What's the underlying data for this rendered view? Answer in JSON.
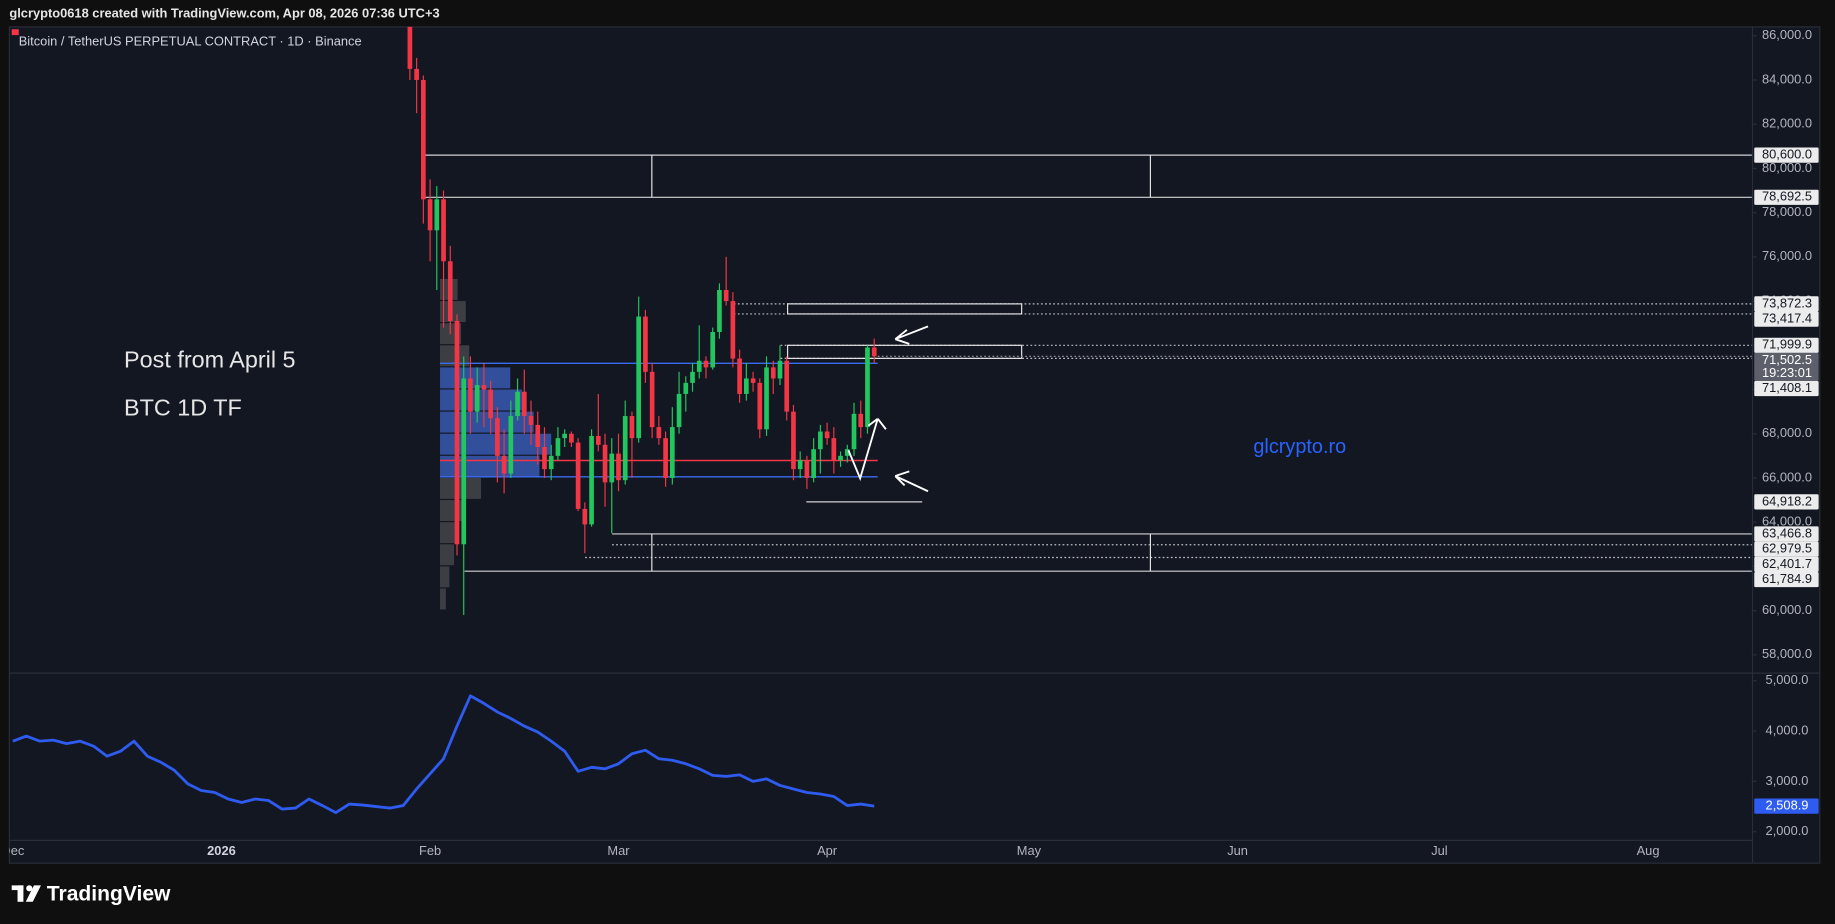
{
  "header": {
    "text": "glcrypto0618 created with TradingView.com, Apr 08, 2026 07:36 UTC+3"
  },
  "footer": {
    "brand": "TradingView"
  },
  "chart_data": [
    {
      "type": "candlestick",
      "title": "Bitcoin / TetherUS PERPETUAL CONTRACT · 1D · Binance",
      "annotations": [
        "Post from April 5",
        "BTC 1D TF",
        "glcrypto.ro"
      ],
      "open": [
        88000,
        84500,
        84000,
        78600,
        77200,
        78600,
        75800,
        73100,
        63000,
        70500,
        69000,
        70200,
        70000,
        68700,
        67000,
        66200,
        68800,
        69900,
        68800,
        68400,
        67400,
        66400,
        67000,
        67800,
        68000,
        67600,
        64600,
        63900,
        67900,
        67500,
        65800,
        67100,
        65900,
        68800,
        67800,
        73300,
        70800,
        68300,
        67800,
        66000,
        68300,
        69800,
        70300,
        70800,
        71300,
        71000,
        72600,
        74500,
        74000,
        71400,
        69800,
        70500,
        70300,
        68200,
        71000,
        70500,
        71300,
        69000,
        66400,
        66800,
        66000,
        67300,
        68100,
        67800,
        66800,
        67000,
        67300,
        68900,
        68300,
        71900
      ],
      "high": [
        88500,
        85000,
        84200,
        79500,
        79200,
        79000,
        76500,
        73400,
        71500,
        71500,
        71000,
        71200,
        70400,
        69200,
        68200,
        69500,
        70500,
        70900,
        69500,
        69000,
        68300,
        67500,
        68300,
        68200,
        68100,
        67800,
        64900,
        68200,
        69800,
        68000,
        67800,
        68000,
        69500,
        69000,
        74200,
        73600,
        71200,
        68800,
        68100,
        69200,
        70800,
        70600,
        71200,
        72900,
        71500,
        72800,
        74800,
        76000,
        74400,
        71800,
        71200,
        70800,
        70500,
        71500,
        71300,
        72000,
        71500,
        69300,
        67200,
        67000,
        67800,
        68400,
        68500,
        68300,
        67200,
        67500,
        69400,
        69500,
        72000,
        72300
      ],
      "low": [
        84000,
        82500,
        77500,
        75800,
        74500,
        72800,
        72500,
        62500,
        59800,
        68000,
        68500,
        68300,
        68000,
        65800,
        65300,
        66000,
        68600,
        68000,
        67500,
        66600,
        66000,
        65900,
        66800,
        67400,
        67400,
        64500,
        62600,
        63800,
        67200,
        64700,
        63500,
        65400,
        65700,
        66000,
        67600,
        70300,
        67800,
        67500,
        65600,
        65700,
        68000,
        69000,
        69900,
        70500,
        70500,
        70900,
        72300,
        73800,
        71000,
        69400,
        69500,
        69900,
        67800,
        67900,
        69800,
        70200,
        68600,
        65900,
        66000,
        65500,
        65800,
        66200,
        67500,
        66200,
        66500,
        66700,
        67000,
        67800,
        68000,
        71200
      ],
      "close": [
        84500,
        84000,
        78600,
        77200,
        78600,
        75800,
        73100,
        63000,
        70500,
        69000,
        70200,
        70000,
        68700,
        67000,
        66200,
        68800,
        69900,
        68800,
        68400,
        67400,
        66400,
        67000,
        67800,
        68000,
        67600,
        64600,
        63900,
        67900,
        67500,
        65800,
        67100,
        65900,
        68800,
        67800,
        73300,
        70800,
        68300,
        67800,
        66000,
        68300,
        69800,
        70300,
        70800,
        71300,
        71000,
        72600,
        74500,
        74000,
        71400,
        69800,
        70500,
        70300,
        68200,
        71000,
        70500,
        71300,
        69000,
        66400,
        66800,
        66000,
        67300,
        68100,
        67800,
        66800,
        67000,
        67300,
        68900,
        68300,
        71900,
        71502.5
      ],
      "up_color": "#22c55e",
      "down_color": "#f23645",
      "ylim": [
        57200,
        86400
      ],
      "yticks": [
        {
          "value": 86000,
          "label": "86,000.0"
        },
        {
          "value": 84000,
          "label": "84,000.0"
        },
        {
          "value": 82000,
          "label": "82,000.0"
        },
        {
          "value": 80000,
          "label": "80,000.0"
        },
        {
          "value": 78000,
          "label": "78,000.0"
        },
        {
          "value": 76000,
          "label": "76,000.0"
        },
        {
          "value": 74000,
          "label": "74,000.0"
        },
        {
          "value": 72000,
          "label": "72,000.0"
        },
        {
          "value": 70000,
          "label": "70,000.0"
        },
        {
          "value": 68000,
          "label": "68,000.0"
        },
        {
          "value": 66000,
          "label": "66,000.0"
        },
        {
          "value": 64000,
          "label": "64,000.0"
        },
        {
          "value": 62000,
          "label": "62,000.0"
        },
        {
          "value": 60000,
          "label": "60,000.0"
        },
        {
          "value": 58000,
          "label": "58,000.0"
        }
      ],
      "levels": [
        {
          "value": 80600,
          "label": "80,600.0"
        },
        {
          "value": 78692.5,
          "label": "78,692.5"
        },
        {
          "value": 73872.3,
          "label": "73,872.3"
        },
        {
          "value": 73417.4,
          "label": "73,417.4"
        },
        {
          "value": 71999.9,
          "label": "71,999.9"
        },
        {
          "value": 71408.1,
          "label": "71,408.1"
        },
        {
          "value": 64918.2,
          "label": "64,918.2"
        },
        {
          "value": 63466.8,
          "label": "63,466.8"
        },
        {
          "value": 62979.5,
          "label": "62,979.5"
        },
        {
          "value": 62401.7,
          "label": "62,401.7"
        },
        {
          "value": 61784.9,
          "label": "61,784.9"
        }
      ],
      "last_price": {
        "value": 71502.5,
        "label": "71,502.5",
        "countdown": "19:23:01"
      },
      "profile": {
        "bins": [
          60000,
          61000,
          62000,
          63000,
          64000,
          65000,
          66000,
          67000,
          68000,
          69000,
          70000,
          71000,
          72000,
          73000,
          74000,
          75000
        ],
        "values": [
          5,
          8,
          12,
          15,
          20,
          35,
          85,
          95,
          80,
          70,
          60,
          25,
          18,
          22,
          15
        ],
        "color": "#4a7dff",
        "outside_color": "#6e6e6e"
      },
      "value_area": {
        "high": 71185,
        "low": 66050,
        "poc": 66790,
        "color": "#3b6cf0",
        "poc_color": "#f23645"
      },
      "level_color": "#e6e6e6"
    },
    {
      "type": "line",
      "color": "#2f5cf0",
      "values": [
        3800,
        3900,
        3800,
        3820,
        3750,
        3800,
        3700,
        3500,
        3600,
        3800,
        3500,
        3380,
        3220,
        2950,
        2820,
        2780,
        2650,
        2580,
        2650,
        2620,
        2450,
        2470,
        2650,
        2520,
        2380,
        2550,
        2530,
        2500,
        2470,
        2520,
        2850,
        3150,
        3450,
        4100,
        4700,
        4550,
        4380,
        4250,
        4100,
        3980,
        3800,
        3600,
        3200,
        3280,
        3250,
        3350,
        3550,
        3620,
        3450,
        3420,
        3350,
        3250,
        3120,
        3100,
        3130,
        3000,
        3050,
        2920,
        2850,
        2780,
        2750,
        2700,
        2520,
        2550,
        2508.9
      ],
      "value_labels": [
        null,
        null,
        null,
        null,
        null,
        null,
        null,
        null,
        null,
        null,
        null,
        null,
        null,
        null,
        null,
        null,
        null,
        null,
        null,
        null,
        null,
        null,
        null,
        null,
        null,
        null,
        null,
        null,
        null,
        null,
        null,
        null,
        null,
        null,
        null,
        null,
        null,
        null,
        null,
        null,
        null,
        null,
        null,
        null,
        null,
        null,
        null,
        null,
        null,
        null,
        null,
        null,
        null,
        null,
        null,
        null,
        null,
        null,
        null,
        null,
        null,
        null,
        null,
        null,
        "2,508.9"
      ],
      "ylim": [
        1840,
        5140
      ],
      "yticks": [
        {
          "value": 5000,
          "label": "5,000.0"
        },
        {
          "value": 4000,
          "label": "4,000.0"
        },
        {
          "value": 3000,
          "label": "3,000.0"
        },
        {
          "value": 2000,
          "label": "2,000.0"
        }
      ],
      "xticks": [
        "Dec",
        "2026",
        "Feb",
        "Mar",
        "Apr",
        "May",
        "Jun",
        "Jul",
        "Aug"
      ]
    }
  ]
}
